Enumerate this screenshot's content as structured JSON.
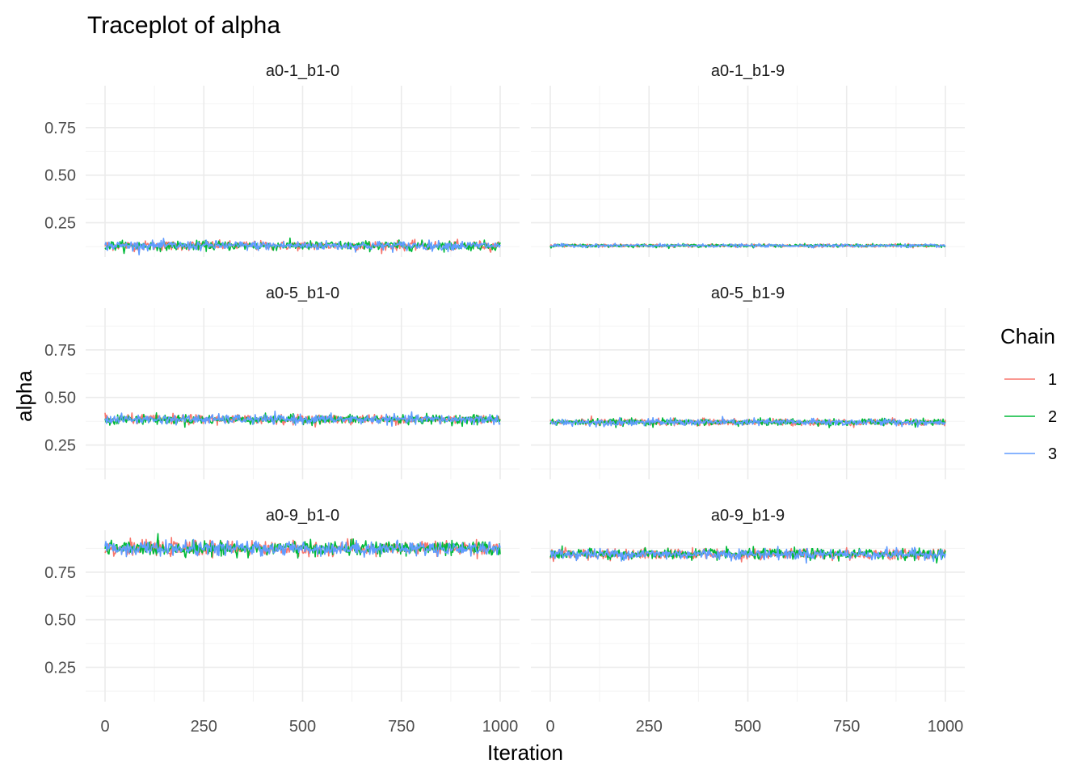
{
  "chart_data": {
    "type": "line",
    "title": "Traceplot of alpha",
    "xlabel": "Iteration",
    "ylabel": "alpha",
    "xlim": [
      0,
      1000
    ],
    "ylim": [
      0.07,
      0.97
    ],
    "x_ticks": [
      0,
      250,
      500,
      750,
      1000
    ],
    "x_tick_labels": [
      "0",
      "250",
      "500",
      "750",
      "1000"
    ],
    "y_ticks": [
      0.25,
      0.5,
      0.75
    ],
    "y_tick_labels": [
      "0.25",
      "0.50",
      "0.75"
    ],
    "grid": true,
    "legend": {
      "title": "Chain",
      "placement": "right",
      "entries": [
        {
          "label": "1",
          "color": "#F8766D"
        },
        {
          "label": "2",
          "color": "#00BA38"
        },
        {
          "label": "3",
          "color": "#619CFF"
        }
      ]
    },
    "n_iterations": 1000,
    "facets": [
      {
        "label": "a0-1_b1-0",
        "mean": 0.13,
        "spread": 0.012
      },
      {
        "label": "a0-1_b1-9",
        "mean": 0.13,
        "spread": 0.004
      },
      {
        "label": "a0-5_b1-0",
        "mean": 0.385,
        "spread": 0.012
      },
      {
        "label": "a0-5_b1-9",
        "mean": 0.37,
        "spread": 0.009
      },
      {
        "label": "a0-9_b1-0",
        "mean": 0.875,
        "spread": 0.018
      },
      {
        "label": "a0-9_b1-9",
        "mean": 0.845,
        "spread": 0.014
      }
    ],
    "series": [
      {
        "name": "1",
        "color": "#F8766D"
      },
      {
        "name": "2",
        "color": "#00BA38"
      },
      {
        "name": "3",
        "color": "#619CFF"
      }
    ]
  }
}
